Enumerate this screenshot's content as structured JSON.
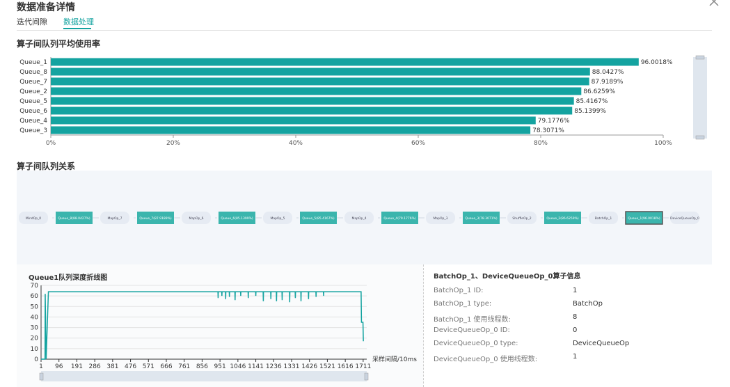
{
  "header": {
    "title": "数据准备详情",
    "tabs": [
      "迭代间隙",
      "数据处理"
    ]
  },
  "chart_data": [
    {
      "type": "bar",
      "orientation": "horizontal",
      "title": "算子间队列平均使用率",
      "color": "#14a3a0",
      "categories": [
        "Queue_1",
        "Queue_8",
        "Queue_7",
        "Queue_2",
        "Queue_5",
        "Queue_6",
        "Queue_4",
        "Queue_3"
      ],
      "values": [
        96.0018,
        88.0427,
        87.9189,
        86.6259,
        85.4167,
        85.1399,
        79.1776,
        78.3071
      ],
      "value_labels": [
        "96.0018%",
        "88.0427%",
        "87.9189%",
        "86.6259%",
        "85.4167%",
        "85.1399%",
        "79.1776%",
        "78.3071%"
      ],
      "xlim": [
        0,
        100
      ],
      "xticks": [
        {
          "value": 0,
          "label": "0%"
        },
        {
          "value": 20,
          "label": "20%"
        },
        {
          "value": 40,
          "label": "40%"
        },
        {
          "value": 60,
          "label": "60%"
        },
        {
          "value": 80,
          "label": "80%"
        },
        {
          "value": 100,
          "label": "100%"
        }
      ]
    },
    {
      "type": "line",
      "title": "Queue1队列深度折线图",
      "x_label": "采样间隔/10ms",
      "color": "#14a3a0",
      "grid": true,
      "x": [
        1,
        22,
        23,
        28,
        40,
        940,
        941,
        942,
        960,
        961,
        962,
        980,
        981,
        982,
        1000,
        1001,
        1002,
        1030,
        1031,
        1032,
        1060,
        1061,
        1062,
        1100,
        1101,
        1102,
        1140,
        1141,
        1142,
        1180,
        1181,
        1182,
        1220,
        1221,
        1222,
        1250,
        1251,
        1252,
        1280,
        1281,
        1282,
        1320,
        1321,
        1322,
        1350,
        1351,
        1352,
        1380,
        1381,
        1382,
        1420,
        1421,
        1422,
        1460,
        1461,
        1462,
        1500,
        1501,
        1502,
        1700,
        1702,
        1710,
        1712
      ],
      "values": [
        0,
        0,
        62,
        0,
        64,
        64,
        58,
        64,
        64,
        60,
        64,
        64,
        57,
        64,
        64,
        59,
        64,
        64,
        56,
        64,
        64,
        60,
        64,
        64,
        58,
        64,
        64,
        60,
        64,
        64,
        55,
        64,
        64,
        57,
        64,
        64,
        55,
        64,
        64,
        56,
        64,
        64,
        54,
        64,
        64,
        58,
        64,
        64,
        55,
        64,
        64,
        57,
        64,
        64,
        59,
        64,
        64,
        60,
        64,
        64,
        35,
        35,
        17
      ],
      "xlim": [
        1,
        1730
      ],
      "xticks": [
        1,
        96,
        191,
        286,
        381,
        476,
        571,
        666,
        761,
        856,
        951,
        1046,
        1141,
        1236,
        1331,
        1426,
        1521,
        1616,
        1711
      ],
      "ylim": [
        0,
        70
      ],
      "yticks": [
        0,
        10,
        20,
        30,
        40,
        50,
        60,
        70
      ]
    }
  ],
  "pipeline": {
    "title": "算子间队列关系",
    "nodes": [
      "MindOp_0",
      "Queue_8(88.0427%)",
      "MapOp_7",
      "Queue_7(87.9189%)",
      "MapOp_6",
      "Queue_6(85.1399%)",
      "MapOp_5",
      "Queue_5(85.4167%)",
      "MapOp_4",
      "Queue_4(79.1776%)",
      "MapOp_3",
      "Queue_3(78.3071%)",
      "ShuffleOp_2",
      "Queue_2(86.6259%)",
      "BatchOp_1",
      "Queue_1(96.0018%)",
      "DeviceQueueOp_0"
    ]
  },
  "info": {
    "title": "BatchOp_1、DeviceQueueOp_0算子信息",
    "rows": [
      [
        "BatchOp_1 ID:",
        "1"
      ],
      [
        "BatchOp_1 type:",
        "BatchOp"
      ],
      [
        "BatchOp_1 使用线程数:",
        "8"
      ],
      [
        "DeviceQueueOp_0 ID:",
        "0"
      ],
      [
        "DeviceQueueOp_0 type:",
        "DeviceQueueOp"
      ],
      [
        "DeviceQueueOp_0 使用线程数:",
        "1"
      ]
    ]
  }
}
